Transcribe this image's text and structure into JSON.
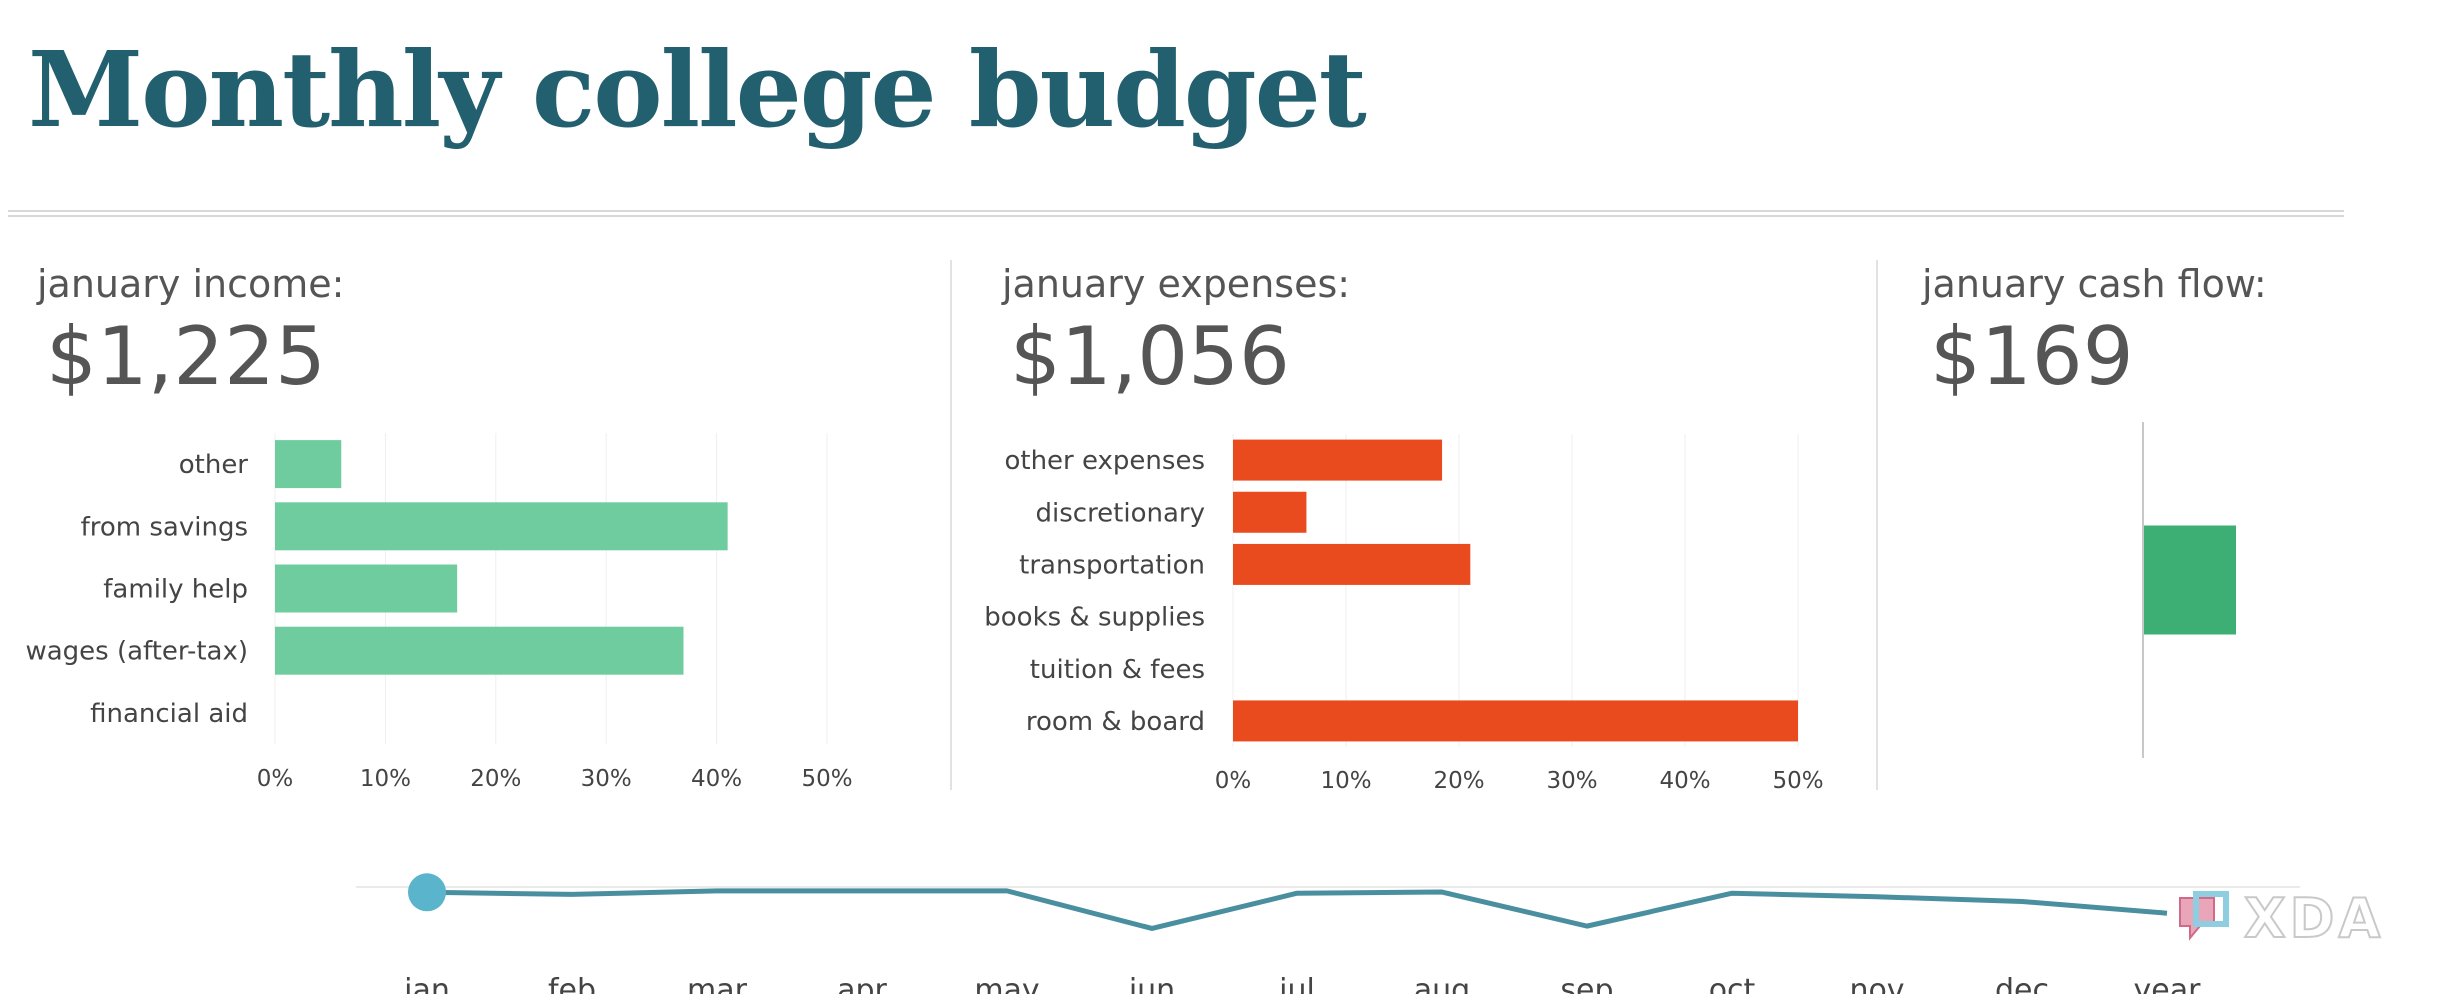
{
  "title": "Monthly college budget",
  "panels": {
    "income": {
      "label": "january income:",
      "value": "$1,225"
    },
    "expenses": {
      "label": "january expenses:",
      "value": "$1,056"
    },
    "cashflow": {
      "label": "january cash flow:",
      "value": "$169"
    }
  },
  "colors": {
    "title": "#23606f",
    "income_bar": "#6fcc9f",
    "expense_bar": "#e94b1e",
    "cashflow_bar": "#3daf74",
    "trend_line": "#4a8fa0",
    "trend_marker": "#5ab4cc"
  },
  "watermark": {
    "text": "XDA"
  },
  "chart_data": [
    {
      "type": "bar",
      "orientation": "horizontal",
      "categories": [
        "other",
        "from savings",
        "family help",
        "wages (after-tax)",
        "financial aid"
      ],
      "values": [
        6,
        41,
        16.5,
        37,
        0
      ],
      "unit": "%",
      "xlim": [
        0,
        50
      ],
      "xticks": [
        "0%",
        "10%",
        "20%",
        "30%",
        "40%",
        "50%"
      ],
      "grid": true
    },
    {
      "type": "bar",
      "orientation": "horizontal",
      "categories": [
        "other expenses",
        "discretionary",
        "transportation",
        "books & supplies",
        "tuition & fees",
        "room & board"
      ],
      "values": [
        18.5,
        6.5,
        21,
        0,
        0,
        50
      ],
      "unit": "%",
      "xlim": [
        0,
        50
      ],
      "xticks": [
        "0%",
        "10%",
        "20%",
        "30%",
        "40%",
        "50%"
      ],
      "grid": true
    },
    {
      "type": "bar",
      "categories": [
        "january cash flow"
      ],
      "values": [
        169
      ]
    },
    {
      "type": "line",
      "categories": [
        "jan",
        "feb",
        "mar",
        "apr",
        "may",
        "jun",
        "jul",
        "aug",
        "sep",
        "oct",
        "nov",
        "dec",
        "year"
      ],
      "values": [
        169,
        160,
        175,
        175,
        175,
        15,
        165,
        170,
        25,
        165,
        150,
        130,
        80
      ],
      "selected": "jan",
      "grid": false
    }
  ]
}
